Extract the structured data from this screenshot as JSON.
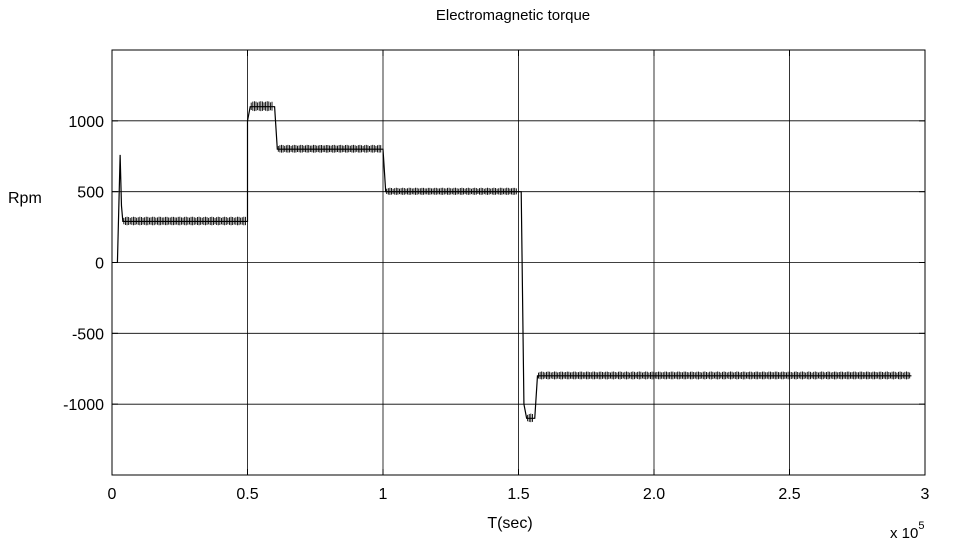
{
  "chart_data": {
    "type": "line",
    "title": "Electromagnetic torque",
    "xlabel": "T(sec)",
    "ylabel": "Rpm",
    "x_multiplier_base": "x 10",
    "x_multiplier_exp": "5",
    "xlim": [
      0,
      3
    ],
    "ylim": [
      -1500,
      1500
    ],
    "grid": true,
    "x_ticks": [
      {
        "value": 0,
        "label": "0"
      },
      {
        "value": 0.5,
        "label": "0.5"
      },
      {
        "value": 1,
        "label": "1"
      },
      {
        "value": 1.5,
        "label": "1.5"
      },
      {
        "value": 2,
        "label": "2.0"
      },
      {
        "value": 2.5,
        "label": "2.5"
      },
      {
        "value": 3,
        "label": "3"
      }
    ],
    "y_ticks": [
      {
        "value": 1000,
        "label": "1000"
      },
      {
        "value": 500,
        "label": "500"
      },
      {
        "value": 0,
        "label": "0"
      },
      {
        "value": -500,
        "label": "-500"
      },
      {
        "value": -1000,
        "label": "-1000"
      }
    ],
    "series": [
      {
        "color": "#000000",
        "x": [
          0.02,
          0.03,
          0.035,
          0.04,
          0.5,
          0.5,
          0.51,
          0.6,
          0.61,
          1.0,
          1.01,
          1.5,
          1.51,
          1.52,
          1.53,
          1.56,
          1.57,
          2.95
        ],
        "y": [
          0,
          760,
          400,
          290,
          290,
          1000,
          1100,
          1100,
          800,
          800,
          500,
          500,
          500,
          -1000,
          -1100,
          -1100,
          -800,
          -800
        ],
        "ripple": [
          0,
          0,
          0,
          60,
          60,
          0,
          70,
          70,
          55,
          55,
          50,
          50,
          0,
          0,
          60,
          60,
          55,
          55
        ]
      }
    ]
  }
}
